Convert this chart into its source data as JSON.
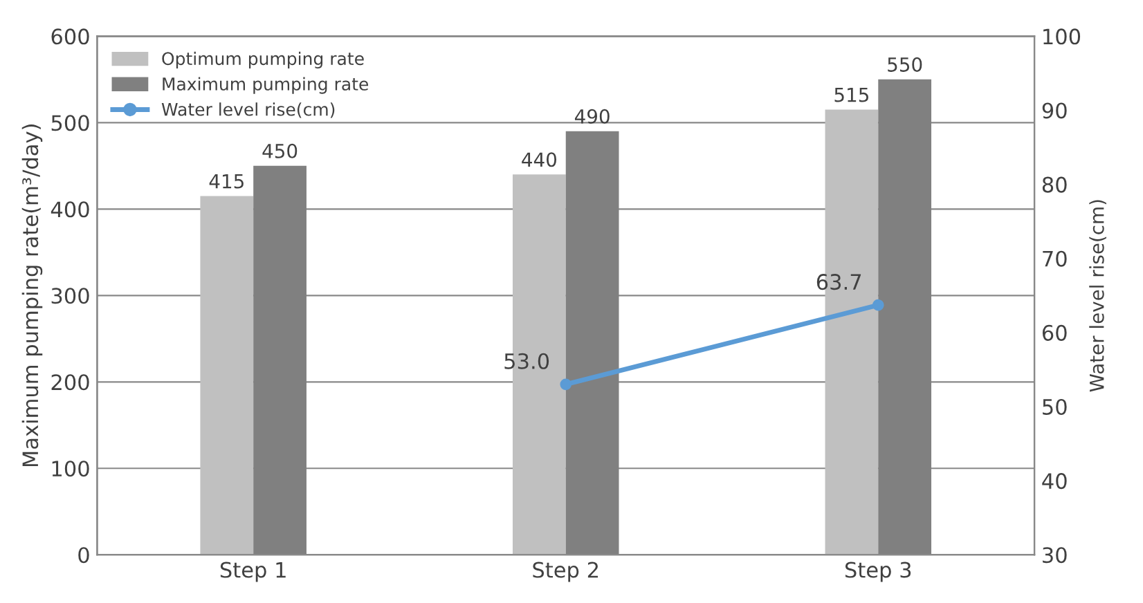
{
  "chart_data": {
    "type": "bar",
    "categories": [
      "Step 1",
      "Step 2",
      "Step 3"
    ],
    "series": [
      {
        "name": "Optimum pumping rate",
        "color": "#c0c0c0",
        "values": [
          415,
          440,
          515
        ],
        "value_labels": [
          "415",
          "440",
          "515"
        ]
      },
      {
        "name": "Maximum pumping rate",
        "color": "#808080",
        "values": [
          450,
          490,
          550
        ],
        "value_labels": [
          "450",
          "490",
          "550"
        ]
      },
      {
        "name": "Water level rise(cm)",
        "type": "line",
        "axis": "y2",
        "color": "#5b9bd5",
        "marker": "circle",
        "values": [
          null,
          53.0,
          63.7
        ],
        "value_labels": [
          null,
          "53.0",
          "63.7"
        ]
      }
    ],
    "ylabel": "Maximum pumping rate(m³/day)",
    "y2label": "Water level rise(cm)",
    "ylim": [
      0,
      600
    ],
    "yticks": [
      0,
      100,
      200,
      300,
      400,
      500,
      600
    ],
    "y2lim": [
      30,
      100
    ],
    "y2ticks": [
      30,
      40,
      50,
      60,
      70,
      80,
      90,
      100
    ],
    "grid": "y",
    "legend": "top left"
  }
}
